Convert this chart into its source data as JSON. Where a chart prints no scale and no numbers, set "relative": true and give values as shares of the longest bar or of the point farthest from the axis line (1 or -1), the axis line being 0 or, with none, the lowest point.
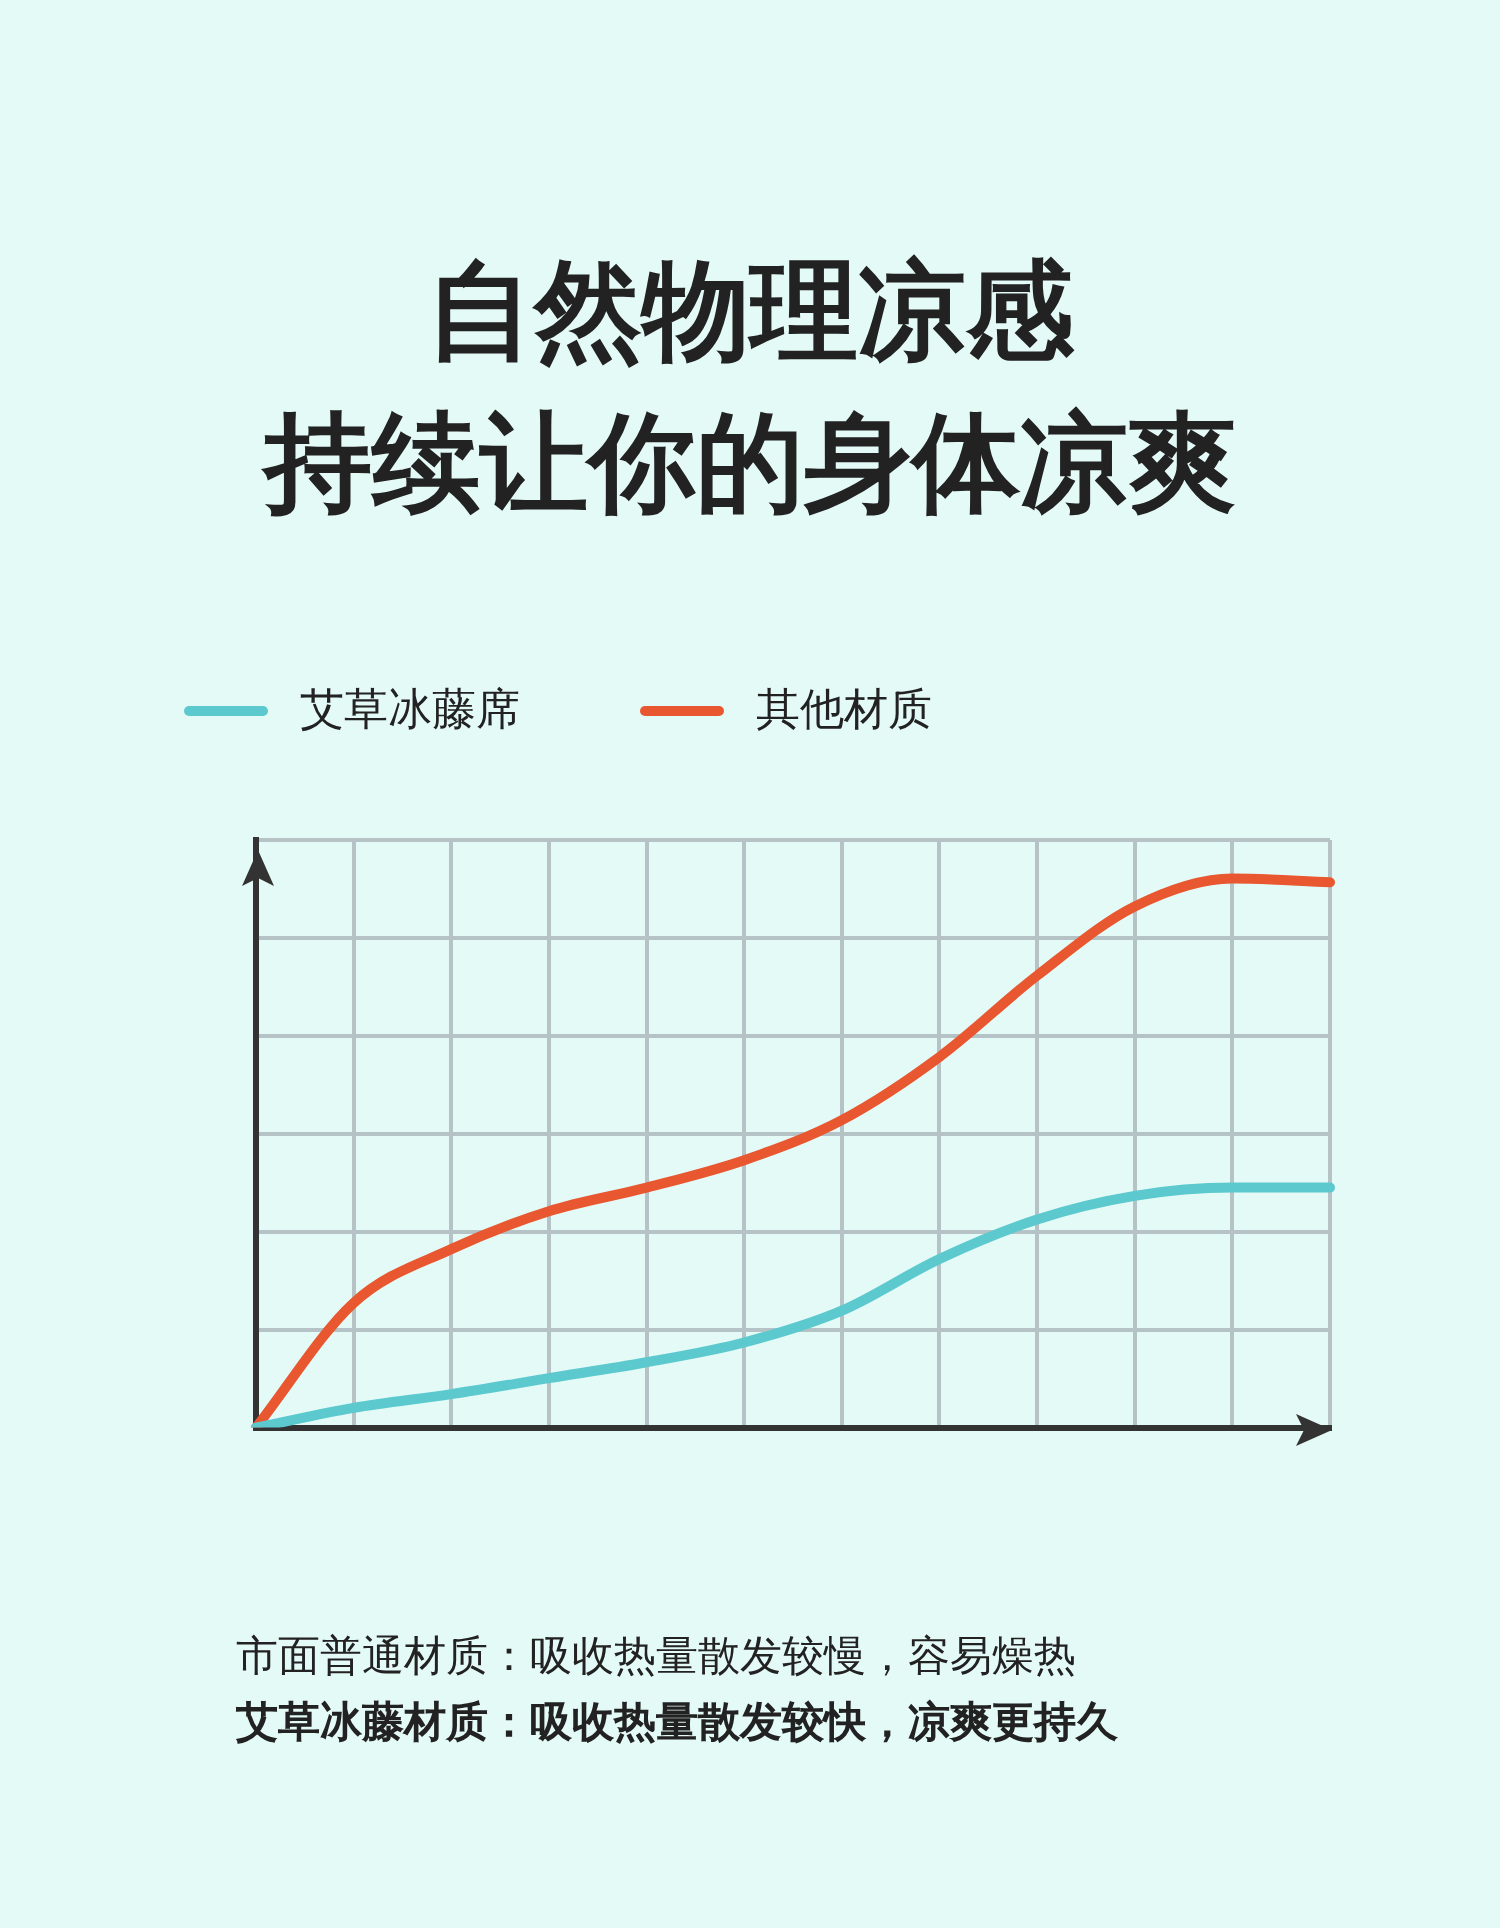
{
  "chart_data": {
    "type": "line",
    "title": "自然物理凉感",
    "subtitle": "持续让你的身体凉爽",
    "relative": true,
    "grid": true,
    "legend": "top left",
    "marker": "none",
    "line_style": "solid",
    "categories": [
      null,
      null,
      null,
      null,
      null,
      null,
      null,
      null,
      null,
      null,
      null,
      null
    ],
    "series": [
      {
        "name": "艾草冰藤席",
        "color": "#5cc9cf",
        "values": [
          0,
          0.036,
          0.061,
          0.09,
          0.119,
          0.155,
          0.213,
          0.307,
          0.379,
          0.422,
          0.437,
          0.437
        ]
      },
      {
        "name": "其他材质",
        "color": "#e8572f",
        "values": [
          0,
          0.227,
          0.325,
          0.394,
          0.437,
          0.487,
          0.56,
          0.675,
          0.823,
          0.949,
          1,
          0.993
        ]
      }
    ],
    "annotations": [
      "市面普通材质：吸收热量散发较慢，容易燥热",
      "艾草冰藤材质：吸收热量散发较快，凉爽更持久"
    ]
  }
}
